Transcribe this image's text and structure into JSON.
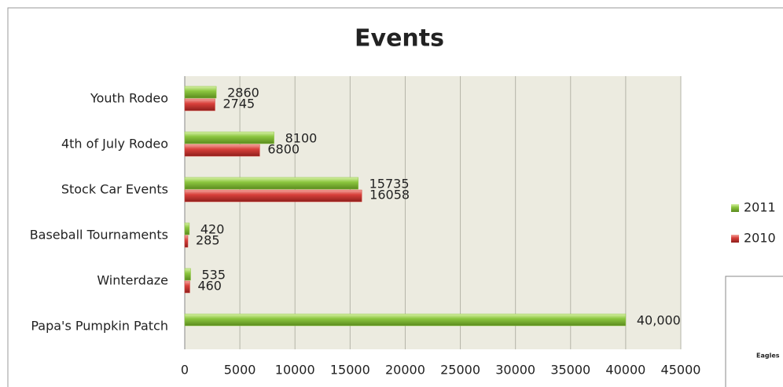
{
  "chart_data": {
    "type": "hbar",
    "title": "Events",
    "categories": [
      "Youth Rodeo",
      "4th of July Rodeo",
      "Stock Car Events",
      "Baseball Tournaments",
      "Winterdaze",
      "Papa's Pumpkin Patch"
    ],
    "series": [
      {
        "name": "2011",
        "color": "#8cc63f",
        "values": [
          2860,
          8100,
          15735,
          420,
          535,
          40000
        ],
        "value_labels": [
          "2860",
          "8100",
          "15735",
          "420",
          "535",
          "40,000"
        ]
      },
      {
        "name": "2010",
        "color": "#d9403b",
        "values": [
          2745,
          6800,
          16058,
          285,
          460,
          null
        ]
      }
    ],
    "xlim": [
      0,
      45000
    ],
    "xticks": [
      0,
      5000,
      10000,
      15000,
      20000,
      25000,
      30000,
      35000,
      40000,
      45000
    ],
    "grid": true,
    "legend": "right",
    "annotations": [
      "Eagles"
    ]
  }
}
